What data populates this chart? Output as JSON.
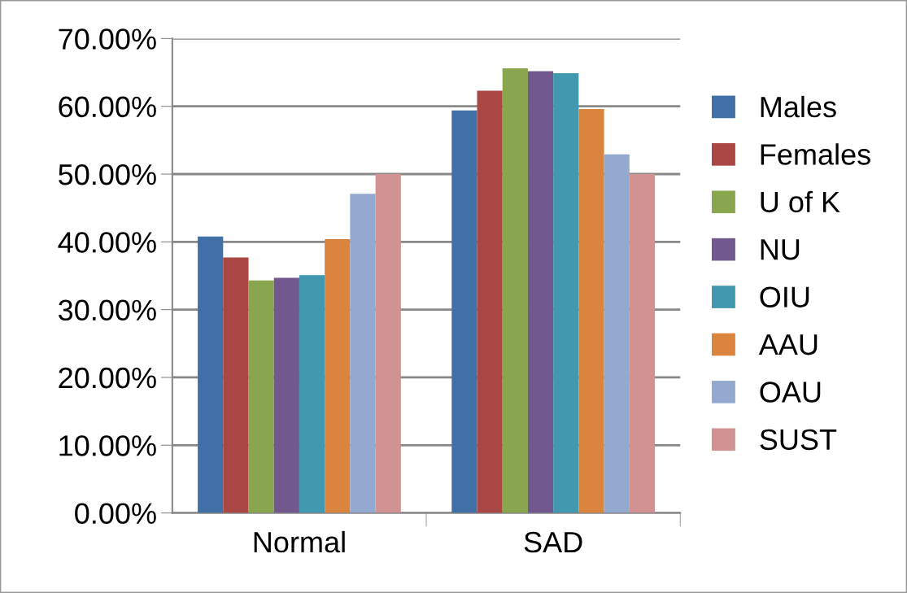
{
  "chart_data": {
    "type": "bar",
    "categories": [
      "Normal",
      "SAD"
    ],
    "series": [
      {
        "name": "Males",
        "color": "#4170a8",
        "values": [
          40.8,
          59.4
        ]
      },
      {
        "name": "Females",
        "color": "#aa4643",
        "values": [
          37.7,
          62.3
        ]
      },
      {
        "name": "U of K",
        "color": "#89a54e",
        "values": [
          34.3,
          65.6
        ]
      },
      {
        "name": "NU",
        "color": "#71588f",
        "values": [
          34.7,
          65.2
        ]
      },
      {
        "name": "OIU",
        "color": "#4198af",
        "values": [
          35.1,
          64.9
        ]
      },
      {
        "name": "AAU",
        "color": "#db843d",
        "values": [
          40.4,
          59.6
        ]
      },
      {
        "name": "OAU",
        "color": "#93a9cf",
        "values": [
          47.1,
          52.9
        ]
      },
      {
        "name": "SUST",
        "color": "#d09392",
        "values": [
          50.0,
          50.0
        ]
      }
    ],
    "ylim": [
      0,
      70
    ],
    "yticks": [
      {
        "value": 0,
        "label": "0.00%"
      },
      {
        "value": 10,
        "label": "10.00%"
      },
      {
        "value": 20,
        "label": "20.00%"
      },
      {
        "value": 30,
        "label": "30.00%"
      },
      {
        "value": 40,
        "label": "40.00%"
      },
      {
        "value": 50,
        "label": "50.00%"
      },
      {
        "value": 60,
        "label": "60.00%"
      },
      {
        "value": 70,
        "label": "70.00%"
      }
    ],
    "grid": "y",
    "legend": "right"
  }
}
